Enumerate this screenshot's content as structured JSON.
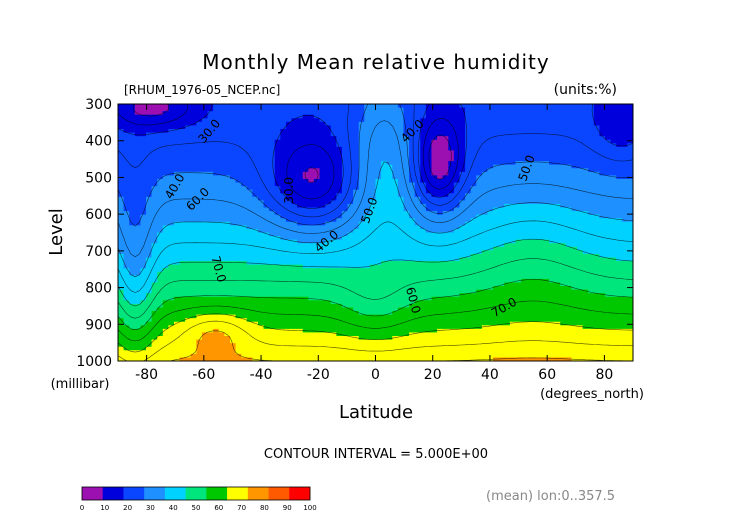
{
  "chart_data": {
    "type": "heatmap",
    "subtype": "filled-contour",
    "title": "Monthly Mean relative humidity",
    "source_label": "[RHUM_1976-05_NCEP.nc]",
    "units_label": "(units:%)",
    "xlabel": "Latitude",
    "x_units_label": "(degrees_north)",
    "ylabel": "Level",
    "y_units_label": "(millibar)",
    "xlim": [
      -90,
      90
    ],
    "ylim": [
      1000,
      300
    ],
    "x_ticks": [
      -80,
      -60,
      -40,
      -20,
      0,
      20,
      40,
      60,
      80
    ],
    "y_ticks": [
      300,
      400,
      500,
      600,
      700,
      800,
      900,
      1000
    ],
    "footer": "CONTOUR INTERVAL = 5.000E+00",
    "mean_note": "(mean) lon:0..357.5",
    "contour_labels": [
      {
        "text": "30.0",
        "lat": -58,
        "lev": 375,
        "angle": -50
      },
      {
        "text": "40.0",
        "lat": -70,
        "lev": 525,
        "angle": -60
      },
      {
        "text": "60.0",
        "lat": -62,
        "lev": 560,
        "angle": -45
      },
      {
        "text": "70.0",
        "lat": -55,
        "lev": 750,
        "angle": 75
      },
      {
        "text": "30.0",
        "lat": -30,
        "lev": 535,
        "angle": -90
      },
      {
        "text": "40.0",
        "lat": -17,
        "lev": 675,
        "angle": -40
      },
      {
        "text": "50.0",
        "lat": -2,
        "lev": 590,
        "angle": -70
      },
      {
        "text": "40.0",
        "lat": 13,
        "lev": 375,
        "angle": -45
      },
      {
        "text": "60.0",
        "lat": 13,
        "lev": 835,
        "angle": 75
      },
      {
        "text": "50.0",
        "lat": 53,
        "lev": 475,
        "angle": -70
      },
      {
        "text": "70.0",
        "lat": 45,
        "lev": 855,
        "angle": -30
      }
    ],
    "colorbar": {
      "ticks": [
        "0",
        "10",
        "20",
        "30",
        "40",
        "50",
        "60",
        "70",
        "80",
        "90",
        "100"
      ],
      "colors": [
        "#9c0fb0",
        "#0000dc",
        "#0a46ff",
        "#1e90ff",
        "#00d2ff",
        "#00e67d",
        "#00c800",
        "#ffff00",
        "#ff9600",
        "#ff5a00",
        "#ff0000"
      ]
    },
    "grid": false,
    "legend": "bottom-left colorbar"
  }
}
